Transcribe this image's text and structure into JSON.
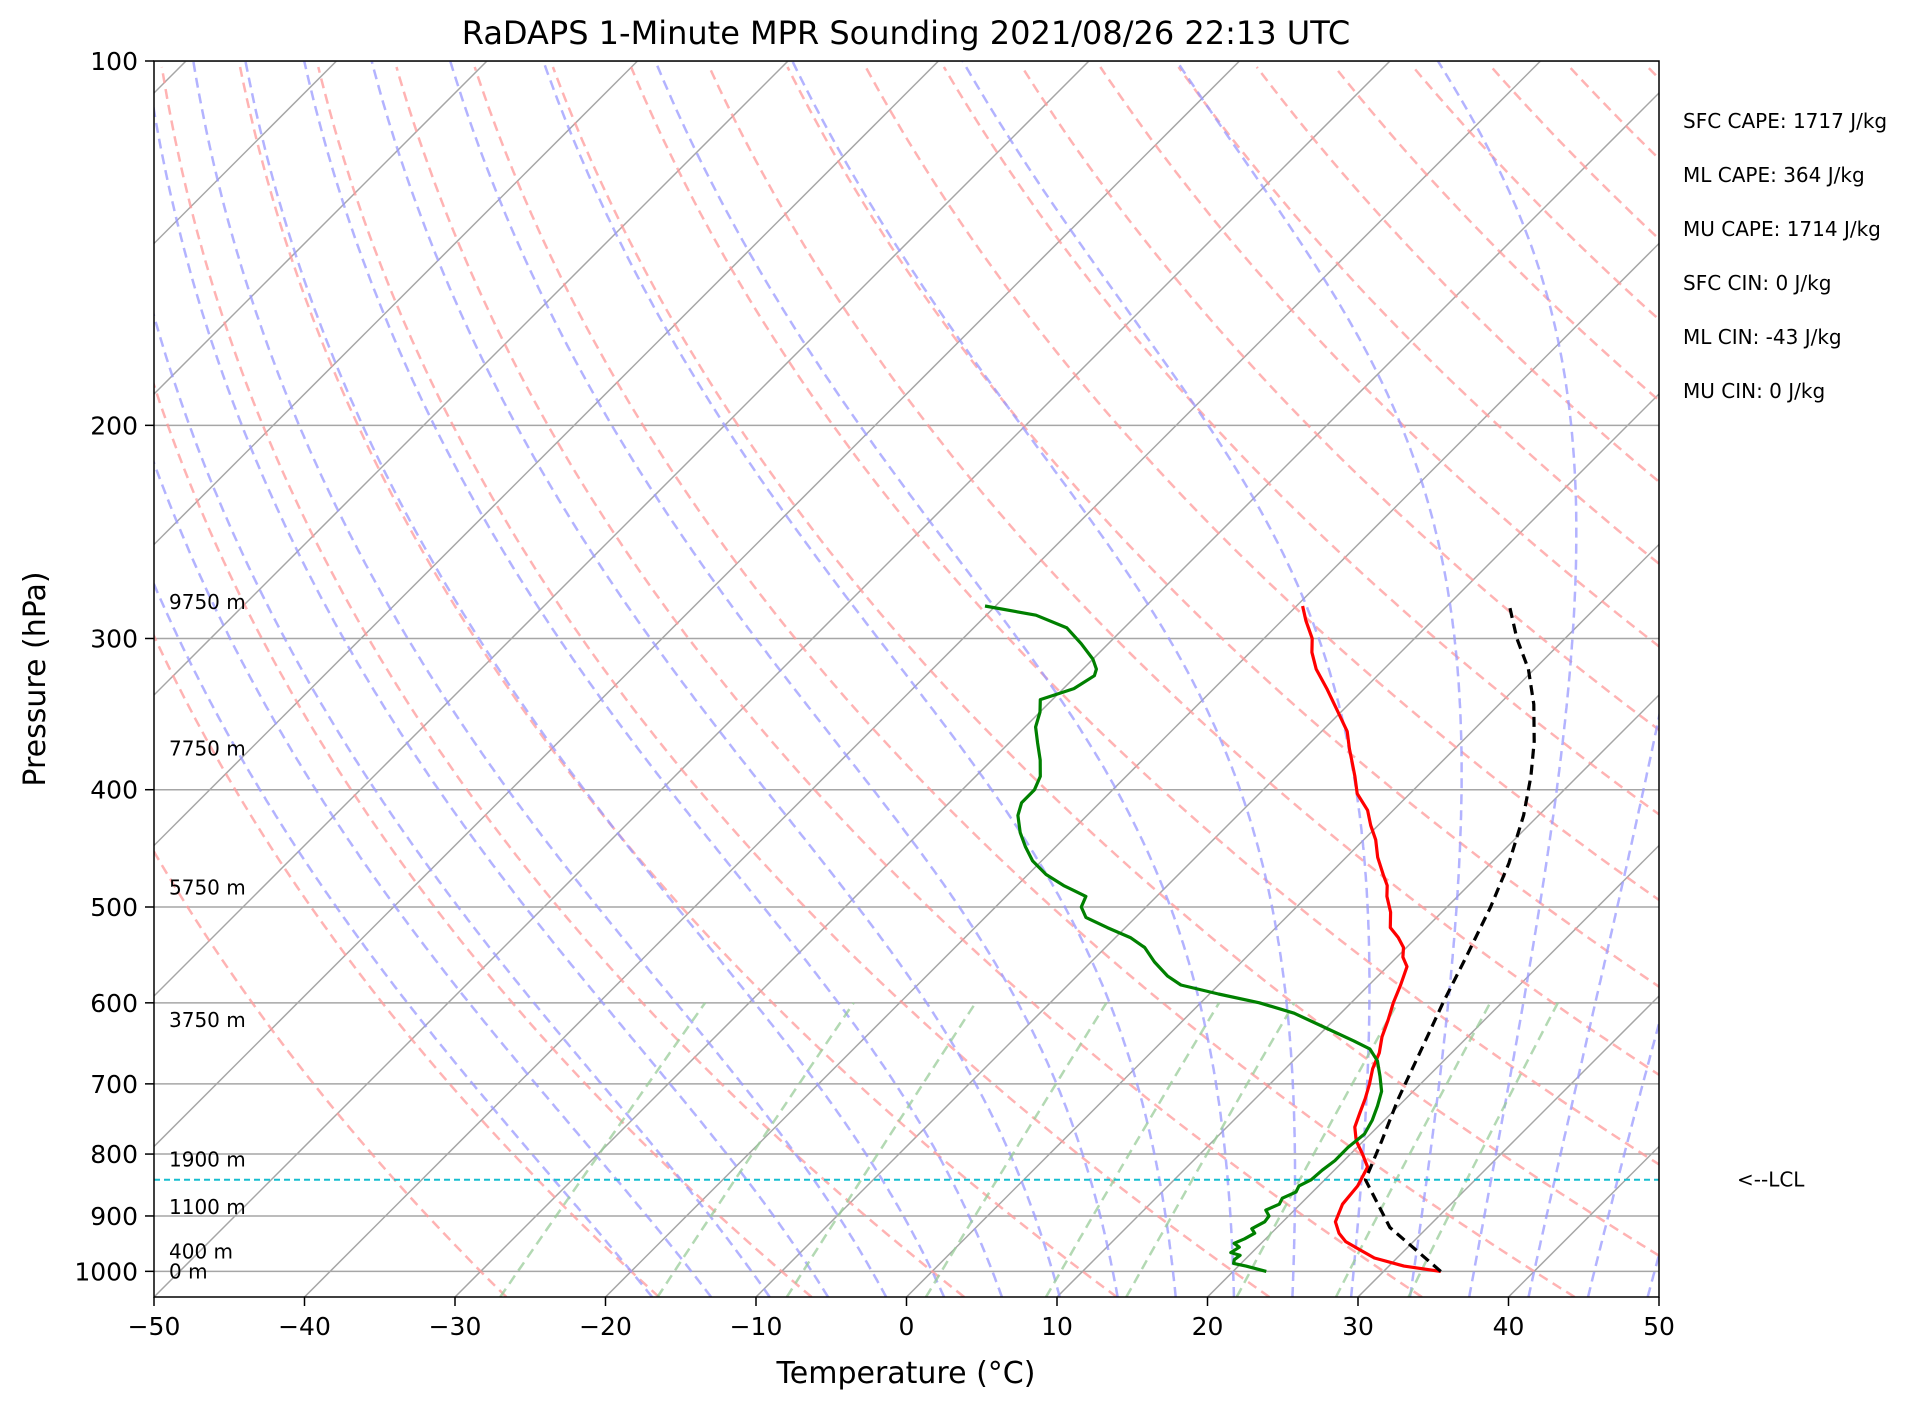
{
  "chart_data": {
    "type": "line",
    "title": "RaDAPS 1-Minute MPR Sounding 2021/08/26 22:13 UTC",
    "xlabel": "Temperature (°C)",
    "ylabel": "Pressure (hPa)",
    "xlim": [
      -50,
      50
    ],
    "ylim": [
      1050,
      100
    ],
    "y_scale": "log",
    "skew_t": true,
    "grid": "on",
    "x_ticks": [
      -50,
      -40,
      -30,
      -20,
      -10,
      0,
      10,
      20,
      30,
      40,
      50
    ],
    "x_tick_labels": [
      "−50",
      "−40",
      "−30",
      "−20",
      "−10",
      "0",
      "10",
      "20",
      "30",
      "40",
      "50"
    ],
    "y_ticks": [
      100,
      200,
      300,
      400,
      500,
      600,
      700,
      800,
      900,
      1000
    ],
    "y_tick_labels": [
      "100",
      "200",
      "300",
      "400",
      "500",
      "600",
      "700",
      "800",
      "900",
      "1000"
    ],
    "height_labels": [
      {
        "p": 280,
        "text": "9750 m"
      },
      {
        "p": 370,
        "text": "7750 m"
      },
      {
        "p": 482,
        "text": "5750 m"
      },
      {
        "p": 620,
        "text": "3750 m"
      },
      {
        "p": 808,
        "text": "1900 m"
      },
      {
        "p": 885,
        "text": "1100 m"
      },
      {
        "p": 963,
        "text": "400 m"
      },
      {
        "p": 1000,
        "text": "0 m"
      }
    ],
    "series": [
      {
        "role": "temperature",
        "color": "#ff0000",
        "points": [
          [
            33.8,
            1000
          ],
          [
            31.0,
            990
          ],
          [
            28.5,
            975
          ],
          [
            27.0,
            960
          ],
          [
            25.5,
            945
          ],
          [
            24.5,
            930
          ],
          [
            23.5,
            910
          ],
          [
            22.8,
            880
          ],
          [
            22.6,
            850
          ],
          [
            22.0,
            820
          ],
          [
            20.8,
            800
          ],
          [
            19.5,
            780
          ],
          [
            18.5,
            760
          ],
          [
            17.9,
            740
          ],
          [
            17.3,
            720
          ],
          [
            16.6,
            700
          ],
          [
            15.8,
            680
          ],
          [
            15.2,
            660
          ],
          [
            14.3,
            640
          ],
          [
            13.6,
            620
          ],
          [
            12.8,
            600
          ],
          [
            12.1,
            580
          ],
          [
            11.3,
            560
          ],
          [
            10.4,
            550
          ],
          [
            9.8,
            540
          ],
          [
            8.8,
            530
          ],
          [
            7.6,
            520
          ],
          [
            6.6,
            505
          ],
          [
            5.3,
            490
          ],
          [
            4.6,
            480
          ],
          [
            3.6,
            470
          ],
          [
            2.1,
            455
          ],
          [
            0.8,
            440
          ],
          [
            -0.5,
            428
          ],
          [
            -1.7,
            416
          ],
          [
            -3.5,
            403
          ],
          [
            -4.8,
            390
          ],
          [
            -6.1,
            378
          ],
          [
            -7.0,
            370
          ],
          [
            -8.3,
            358
          ],
          [
            -10.2,
            345
          ],
          [
            -12.5,
            330
          ],
          [
            -14.5,
            318
          ],
          [
            -15.9,
            308
          ],
          [
            -16.8,
            300
          ],
          [
            -18.4,
            290
          ],
          [
            -19.6,
            282
          ]
        ]
      },
      {
        "role": "dewpoint",
        "color": "#008000",
        "points": [
          [
            22.2,
            1000
          ],
          [
            20.5,
            990
          ],
          [
            19.5,
            985
          ],
          [
            19.3,
            978
          ],
          [
            19.4,
            970
          ],
          [
            18.6,
            965
          ],
          [
            18.8,
            955
          ],
          [
            18.2,
            948
          ],
          [
            18.6,
            940
          ],
          [
            18.9,
            930
          ],
          [
            18.4,
            922
          ],
          [
            18.8,
            910
          ],
          [
            18.7,
            900
          ],
          [
            18.1,
            890
          ],
          [
            18.6,
            880
          ],
          [
            18.4,
            870
          ],
          [
            18.9,
            860
          ],
          [
            18.7,
            850
          ],
          [
            19.1,
            840
          ],
          [
            19.2,
            825
          ],
          [
            19.4,
            810
          ],
          [
            19.4,
            790
          ],
          [
            19.6,
            770
          ],
          [
            19.2,
            750
          ],
          [
            18.6,
            730
          ],
          [
            17.9,
            710
          ],
          [
            16.8,
            690
          ],
          [
            15.6,
            670
          ],
          [
            14.3,
            655
          ],
          [
            12.7,
            645
          ],
          [
            10.1,
            630
          ],
          [
            6.9,
            612
          ],
          [
            3.9,
            600
          ],
          [
            0.6,
            590
          ],
          [
            -2.5,
            580
          ],
          [
            -4.0,
            570
          ],
          [
            -5.8,
            555
          ],
          [
            -7.4,
            540
          ],
          [
            -9.0,
            530
          ],
          [
            -11.2,
            520
          ],
          [
            -13.3,
            510
          ],
          [
            -14.3,
            500
          ],
          [
            -14.7,
            490
          ],
          [
            -16.9,
            480
          ],
          [
            -18.8,
            470
          ],
          [
            -20.6,
            458
          ],
          [
            -22.0,
            446
          ],
          [
            -23.3,
            434
          ],
          [
            -24.6,
            420
          ],
          [
            -25.2,
            410
          ],
          [
            -25.2,
            400
          ],
          [
            -25.7,
            390
          ],
          [
            -26.8,
            378
          ],
          [
            -28.1,
            366
          ],
          [
            -29.3,
            355
          ],
          [
            -30.0,
            345
          ],
          [
            -30.8,
            337
          ],
          [
            -29.3,
            330
          ],
          [
            -28.8,
            322
          ],
          [
            -29.1,
            318
          ],
          [
            -30.0,
            312
          ],
          [
            -31.8,
            303
          ],
          [
            -33.8,
            294
          ],
          [
            -36.7,
            287
          ],
          [
            -40.7,
            282
          ]
        ]
      },
      {
        "role": "parcel",
        "color": "#000000",
        "points": [
          [
            33.8,
            1000
          ],
          [
            27.5,
            920
          ],
          [
            22.7,
            840
          ],
          [
            21.2,
            780
          ],
          [
            19.5,
            720
          ],
          [
            17.6,
            650
          ],
          [
            16.1,
            600
          ],
          [
            14.6,
            550
          ],
          [
            12.9,
            500
          ],
          [
            11.2,
            460
          ],
          [
            9.0,
            420
          ],
          [
            6.9,
            390
          ],
          [
            4.8,
            365
          ],
          [
            2.3,
            340
          ],
          [
            -0.4,
            318
          ],
          [
            -3.2,
            300
          ],
          [
            -5.7,
            283
          ]
        ]
      }
    ],
    "lcl_pressure_hpa": 840,
    "lcl_label": "<--LCL",
    "stats": [
      "SFC CAPE: 1717 J/kg",
      "ML CAPE: 364 J/kg",
      "MU CAPE: 1714 J/kg",
      "SFC CIN: 0 J/kg",
      "ML CIN: -43 J/kg",
      "MU CIN: 0 J/kg"
    ],
    "colors": {
      "isotherm": "#a6a6a6",
      "dry_adiabat": "#ff9999",
      "moist_adiabat": "#9999ff",
      "mixing_ratio": "#99cc99",
      "lcl_line": "#17becf"
    }
  }
}
